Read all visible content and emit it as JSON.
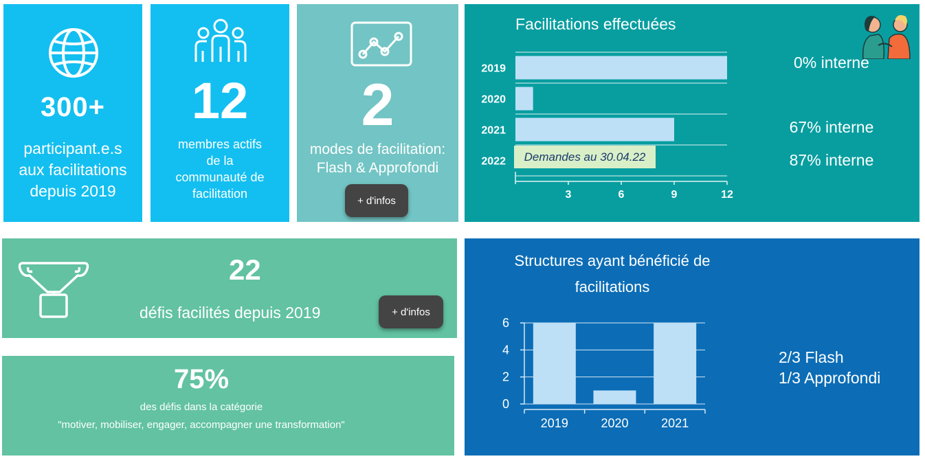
{
  "tile_participants": {
    "value": "300+",
    "label_lines": [
      "participant.e.s",
      "aux facilitations",
      "depuis 2019"
    ],
    "icon": "globe-icon"
  },
  "tile_members": {
    "value": "12",
    "label_lines": [
      "membres actifs",
      "de la",
      "communauté de",
      "facilitation"
    ],
    "icon": "group-icon"
  },
  "tile_modes": {
    "value": "2",
    "label_lines": [
      "modes de facilitation:",
      "Flash & Approfondi"
    ],
    "button_label": "+ d'infos",
    "icon": "line-chart-icon"
  },
  "chart_facilitations": {
    "title": "Facilitations effectuées",
    "note": "Demandes au 30.04.22",
    "internal_labels": [
      "0% interne",
      "67% interne",
      "87% interne"
    ],
    "icon": "people-talking-icon"
  },
  "tile_defis": {
    "value": "22",
    "label": "défis facilités depuis 2019",
    "button_label": "+ d'infos",
    "icon": "trophy-icon"
  },
  "tile_categorie": {
    "value": "75%",
    "line1": "des défis dans la catégorie",
    "line2": "\"motiver, mobiliser, engager, accompagner une transformation\""
  },
  "chart_structures": {
    "title_lines": [
      "Structures ayant bénéficié de",
      "facilitations"
    ],
    "side_lines": [
      "2/3 Flash",
      "1/3 Approfondi"
    ]
  },
  "chart_data": [
    {
      "type": "bar",
      "orientation": "horizontal",
      "title": "Facilitations effectuées",
      "categories": [
        "2019",
        "2020",
        "2021",
        "2022"
      ],
      "values": [
        12,
        1,
        9,
        null
      ],
      "xlim": [
        0,
        12
      ],
      "xticks": [
        3,
        6,
        9,
        12
      ],
      "annotations": [
        "Demandes au 30.04.22",
        "0% interne",
        "67% interne",
        "87% interne"
      ],
      "colors": {
        "bar": "#bde0f7",
        "background": "#089ea0"
      }
    },
    {
      "type": "bar",
      "orientation": "vertical",
      "title": "Structures ayant bénéficié de facilitations",
      "categories": [
        "2019",
        "2020",
        "2021"
      ],
      "values": [
        6,
        1,
        6
      ],
      "ylim": [
        0,
        6
      ],
      "yticks": [
        0,
        2,
        4,
        6
      ],
      "annotations": [
        "2/3 Flash",
        "1/3 Approfondi"
      ],
      "colors": {
        "bar": "#bde0f7",
        "background": "#0c6db6"
      }
    }
  ],
  "colors": {
    "cyan": "#13bff0",
    "teal_light": "#73c4c4",
    "teal": "#089ea0",
    "green": "#62c2a2",
    "blue": "#0c6db6",
    "button": "#444444"
  }
}
